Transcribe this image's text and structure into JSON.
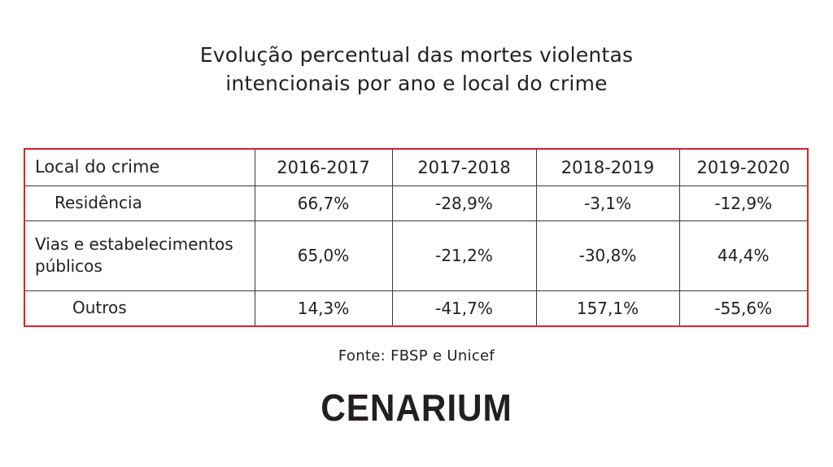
{
  "title": {
    "line1": "Evolução percentual das mortes violentas",
    "line2": "intencionais por ano e local do crime"
  },
  "chart_data": {
    "type": "table",
    "columns": [
      "Local do crime",
      "2016-2017",
      "2017-2018",
      "2018-2019",
      "2019-2020"
    ],
    "rows": [
      {
        "label": "Residência",
        "values": [
          "66,7%",
          "-28,9%",
          "-3,1%",
          "-12,9%"
        ]
      },
      {
        "label": "Vias e estabelecimentos públicos",
        "values": [
          "65,0%",
          "-21,2%",
          "-30,8%",
          "44,4%"
        ]
      },
      {
        "label": "Outros",
        "values": [
          "14,3%",
          "-41,7%",
          "157,1%",
          "-55,6%"
        ]
      }
    ],
    "values_numeric": [
      [
        66.7,
        -28.9,
        -3.1,
        -12.9
      ],
      [
        65.0,
        -21.2,
        -30.8,
        44.4
      ],
      [
        14.3,
        -41.7,
        157.1,
        -55.6
      ]
    ],
    "source": "Fonte: FBSP e Unicef"
  },
  "row2_label_lines": [
    "Vias e estabelecimentos",
    "públicos"
  ],
  "logo": "CENARIUM",
  "colors": {
    "frame": "#d9232d",
    "text": "#231f20"
  }
}
